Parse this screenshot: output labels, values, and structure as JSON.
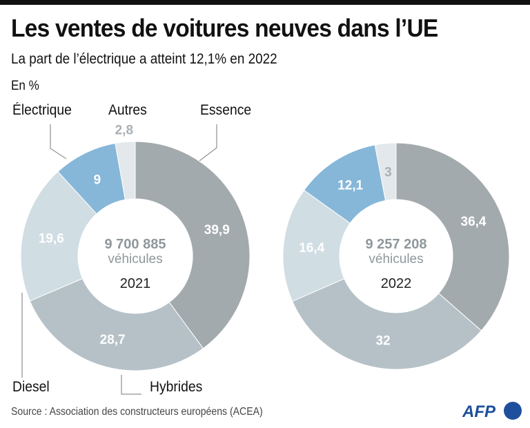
{
  "header": {
    "title": "Les ventes de voitures neuves dans l’UE",
    "subtitle": "La part de l’électrique a atteint 12,1% en 2022",
    "unit": "En %"
  },
  "legend_labels": {
    "electrique": "Électrique",
    "autres": "Autres",
    "essence": "Essence",
    "diesel": "Diesel",
    "hybrides": "Hybrides"
  },
  "footer": {
    "source": "Source : Association des constructeurs européens (ACEA)",
    "logo": "AFP"
  },
  "colors": {
    "essence": "#a3aaae",
    "hybrides": "#b6c1c7",
    "diesel": "#d0dde3",
    "electrique": "#86b7d8",
    "autres": "#e3e8eb",
    "logo": "#1e4f9c"
  },
  "chart_data": [
    {
      "type": "pie",
      "subtype": "donut",
      "year": "2021",
      "total": "9 700 885",
      "total_unit": "véhicules",
      "categories": [
        "Essence",
        "Hybrides",
        "Diesel",
        "Électrique",
        "Autres"
      ],
      "values": [
        39.9,
        28.7,
        19.6,
        9,
        2.8
      ],
      "value_labels": [
        "39,9",
        "28,7",
        "19,6",
        "9",
        "2,8"
      ]
    },
    {
      "type": "pie",
      "subtype": "donut",
      "year": "2022",
      "total": "9 257 208",
      "total_unit": "véhicules",
      "categories": [
        "Essence",
        "Hybrides",
        "Diesel",
        "Électrique",
        "Autres"
      ],
      "values": [
        36.4,
        32,
        16.4,
        12.1,
        3
      ],
      "value_labels": [
        "36,4",
        "32",
        "16,4",
        "12,1",
        "3"
      ]
    }
  ]
}
